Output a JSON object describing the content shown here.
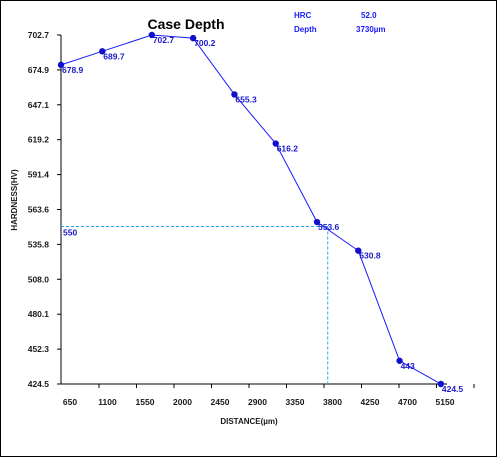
{
  "chart_data": {
    "type": "line",
    "title": "Case Depth",
    "xlabel": "DISTANCE(µm)",
    "ylabel": "HARDNESS(HV)",
    "x_ticks": [
      "650",
      "1100",
      "1550",
      "2000",
      "2450",
      "2900",
      "3350",
      "3800",
      "4250",
      "4700",
      "5150"
    ],
    "y_ticks": [
      "424.5",
      "452.3",
      "480.1",
      "508.0",
      "535.8",
      "563.6",
      "591.4",
      "619.2",
      "647.1",
      "674.9",
      "702.7"
    ],
    "xlim": [
      500,
      5150
    ],
    "ylim": [
      424.5,
      702.7
    ],
    "grid": false,
    "series": [
      {
        "color": "#1a1aff",
        "x": [
          500,
          1000,
          1600,
          2100,
          2600,
          3100,
          3600,
          4100,
          4600,
          5100
        ],
        "y": [
          678.9,
          689.7,
          702.7,
          700.2,
          655.3,
          616.2,
          553.6,
          530.8,
          443,
          424.5
        ],
        "labels": [
          "678.9",
          "689.7",
          "702.7",
          "700.2",
          "655.3",
          "616.2",
          "553.6",
          "530.8",
          "443",
          "424.5"
        ]
      }
    ],
    "reference": {
      "y": 550,
      "y_label": "550",
      "x": 3730,
      "color": "#22aaee"
    },
    "info": {
      "hrc_label": "HRC",
      "hrc_value": "52.0",
      "depth_label": "Depth",
      "depth_value": "3730µm"
    }
  }
}
